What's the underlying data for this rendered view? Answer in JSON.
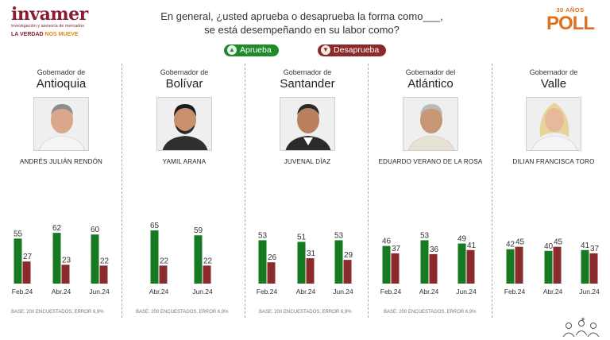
{
  "header": {
    "logo": {
      "name": "invamer",
      "subtitle": "investigación y asesoría de mercados",
      "tagline_a": "LA VERDAD",
      "tagline_b": "NOS MUEVE"
    },
    "question_line1": "En general, ¿usted aprueba o desaprueba la forma como___,",
    "question_line2": "se está desempeñando en su labor como?",
    "badge_top": "30 AÑOS",
    "badge_main": "POLL"
  },
  "legend": {
    "approve": "Aprueba",
    "disapprove": "Desaprueba"
  },
  "colors": {
    "approve": "#177a23",
    "disapprove": "#8a2a2a",
    "label": "#333333"
  },
  "base_note": "BASE: 200 ENCUESTADOS, ERROR 6,9%",
  "chart_data": [
    {
      "type": "bar",
      "role": "Gobernador de",
      "region": "Antioquia",
      "person": "ANDRÉS JULIÁN RENDÓN",
      "categories": [
        "Feb.24",
        "Abr.24",
        "Jun.24"
      ],
      "series": [
        {
          "name": "Aprueba",
          "values": [
            55,
            62,
            60
          ]
        },
        {
          "name": "Desaprueba",
          "values": [
            27,
            23,
            22
          ]
        }
      ]
    },
    {
      "type": "bar",
      "role": "Gobernador de",
      "region": "Bolívar",
      "person": "YAMIL ARANA",
      "categories": [
        "Abr.24",
        "Jun.24"
      ],
      "series": [
        {
          "name": "Aprueba",
          "values": [
            65,
            59
          ]
        },
        {
          "name": "Desaprueba",
          "values": [
            22,
            22
          ]
        }
      ]
    },
    {
      "type": "bar",
      "role": "Gobernador de",
      "region": "Santander",
      "person": "JUVENAL DÍAZ",
      "categories": [
        "Feb.24",
        "Abr.24",
        "Jun.24"
      ],
      "series": [
        {
          "name": "Aprueba",
          "values": [
            53,
            51,
            53
          ]
        },
        {
          "name": "Desaprueba",
          "values": [
            26,
            31,
            29
          ]
        }
      ]
    },
    {
      "type": "bar",
      "role": "Gobernador del",
      "region": "Atlántico",
      "person": "EDUARDO VERANO DE LA ROSA",
      "categories": [
        "Feb.24",
        "Abr.24",
        "Jun.24"
      ],
      "series": [
        {
          "name": "Aprueba",
          "values": [
            46,
            53,
            49
          ]
        },
        {
          "name": "Desaprueba",
          "values": [
            37,
            36,
            41
          ]
        }
      ]
    },
    {
      "type": "bar",
      "role": "Gobernador de",
      "region": "Valle",
      "person": "DILIAN FRANCISCA TORO",
      "categories": [
        "Feb.24",
        "Abr.24",
        "Jun.24"
      ],
      "series": [
        {
          "name": "Aprueba",
          "values": [
            42,
            40,
            41
          ]
        },
        {
          "name": "Desaprueba",
          "values": [
            45,
            45,
            37
          ]
        }
      ]
    }
  ]
}
